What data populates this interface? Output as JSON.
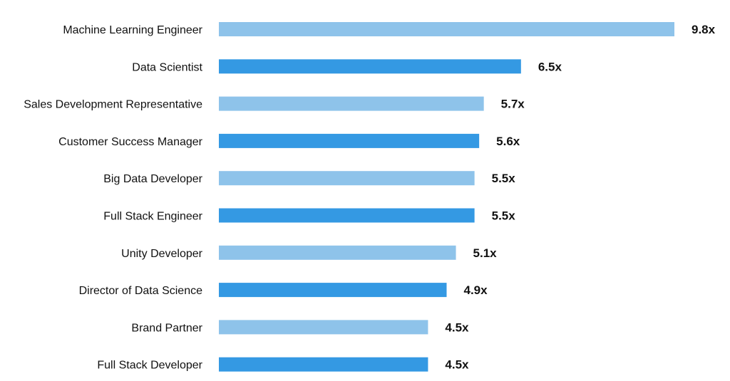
{
  "chart_data": {
    "type": "bar",
    "orientation": "horizontal",
    "title": "",
    "xlabel": "",
    "ylabel": "",
    "categories": [
      "Machine Learning Engineer",
      "Data Scientist",
      "Sales Development Representative",
      "Customer Success Manager",
      "Big Data Developer",
      "Full Stack Engineer",
      "Unity Developer",
      "Director of Data Science",
      "Brand Partner",
      "Full Stack Developer"
    ],
    "values": [
      9.8,
      6.5,
      5.7,
      5.6,
      5.5,
      5.5,
      5.1,
      4.9,
      4.5,
      4.5
    ],
    "value_labels": [
      "9.8x",
      "6.5x",
      "5.7x",
      "5.6x",
      "5.5x",
      "5.5x",
      "5.1x",
      "4.9x",
      "4.5x",
      "4.5x"
    ],
    "xlim": [
      0,
      9.8
    ],
    "grid": false,
    "colors": {
      "light": "#8ec3ea",
      "dark": "#3499e3",
      "text": "#111111"
    },
    "color_pattern": [
      "light",
      "dark"
    ]
  }
}
